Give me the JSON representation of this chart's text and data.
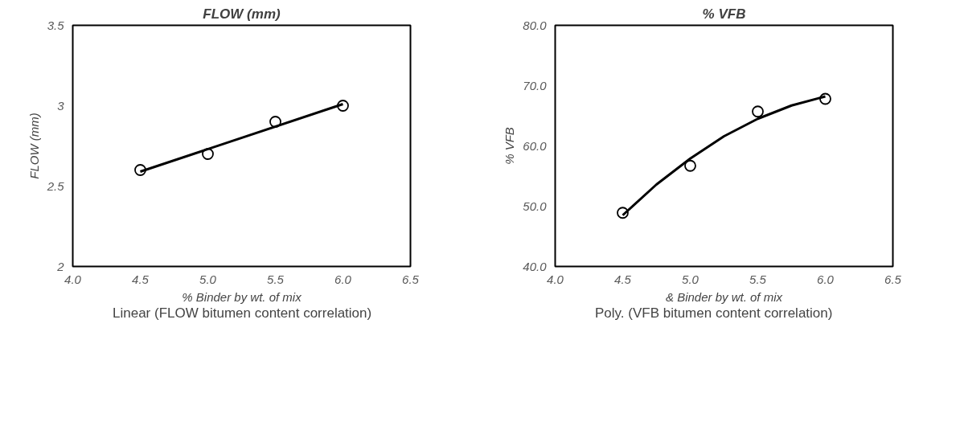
{
  "chart_data": [
    {
      "type": "scatter",
      "title": "FLOW (mm)",
      "xlabel": "% Binder by wt. of mix",
      "ylabel": "FLOW (mm)",
      "xlim": [
        4.0,
        6.5
      ],
      "xticks": [
        {
          "value": 4.0,
          "label": "4.0"
        },
        {
          "value": 4.5,
          "label": "4.5"
        },
        {
          "value": 5.0,
          "label": "5.0"
        },
        {
          "value": 5.5,
          "label": "5.5"
        },
        {
          "value": 6.0,
          "label": "6.0"
        },
        {
          "value": 6.5,
          "label": "6.5"
        }
      ],
      "ylim": [
        2,
        3.5
      ],
      "yticks": [
        2,
        2.5,
        3,
        3.5
      ],
      "grid": false,
      "legend": "bottom",
      "series": [
        {
          "type": "scatter",
          "marker": "circle",
          "color": "#000000",
          "x": [
            4.5,
            5.0,
            5.5,
            6.0
          ],
          "values": [
            2.6,
            2.7,
            2.9,
            3.0
          ]
        },
        {
          "type": "line",
          "name": "Linear (FLOW bitumen content correlation)",
          "color": "#000000",
          "x": [
            4.5,
            6.0
          ],
          "values": [
            2.59,
            3.01
          ]
        }
      ]
    },
    {
      "type": "scatter",
      "title": "% VFB",
      "xlabel": "& Binder by wt. of mix",
      "ylabel": "% VFB",
      "xlim": [
        4.0,
        6.5
      ],
      "xticks": [
        {
          "value": 4.0,
          "label": "4.0"
        },
        {
          "value": 4.5,
          "label": "4.5"
        },
        {
          "value": 5.0,
          "label": "5.0"
        },
        {
          "value": 5.5,
          "label": "5.5"
        },
        {
          "value": 6.0,
          "label": "6.0"
        },
        {
          "value": 6.5,
          "label": "6.5"
        }
      ],
      "ylim": [
        40,
        80
      ],
      "yticks": [
        {
          "value": 40,
          "label": "40.0"
        },
        {
          "value": 50,
          "label": "50.0"
        },
        {
          "value": 60,
          "label": "60.0"
        },
        {
          "value": 70,
          "label": "70.0"
        },
        {
          "value": 80,
          "label": "80.0"
        }
      ],
      "grid": false,
      "legend": "bottom",
      "series": [
        {
          "type": "scatter",
          "marker": "circle",
          "color": "#000000",
          "x": [
            4.5,
            5.0,
            5.5,
            6.0
          ],
          "values": [
            48.9,
            56.7,
            65.7,
            67.8
          ]
        },
        {
          "type": "line",
          "name": "Poly. (VFB bitumen content correlation)",
          "color": "#000000",
          "x": [
            4.5,
            4.75,
            5.0,
            5.25,
            5.5,
            5.75,
            6.0
          ],
          "values": [
            48.5,
            53.6,
            57.9,
            61.6,
            64.5,
            66.7,
            68.2
          ]
        }
      ]
    }
  ]
}
